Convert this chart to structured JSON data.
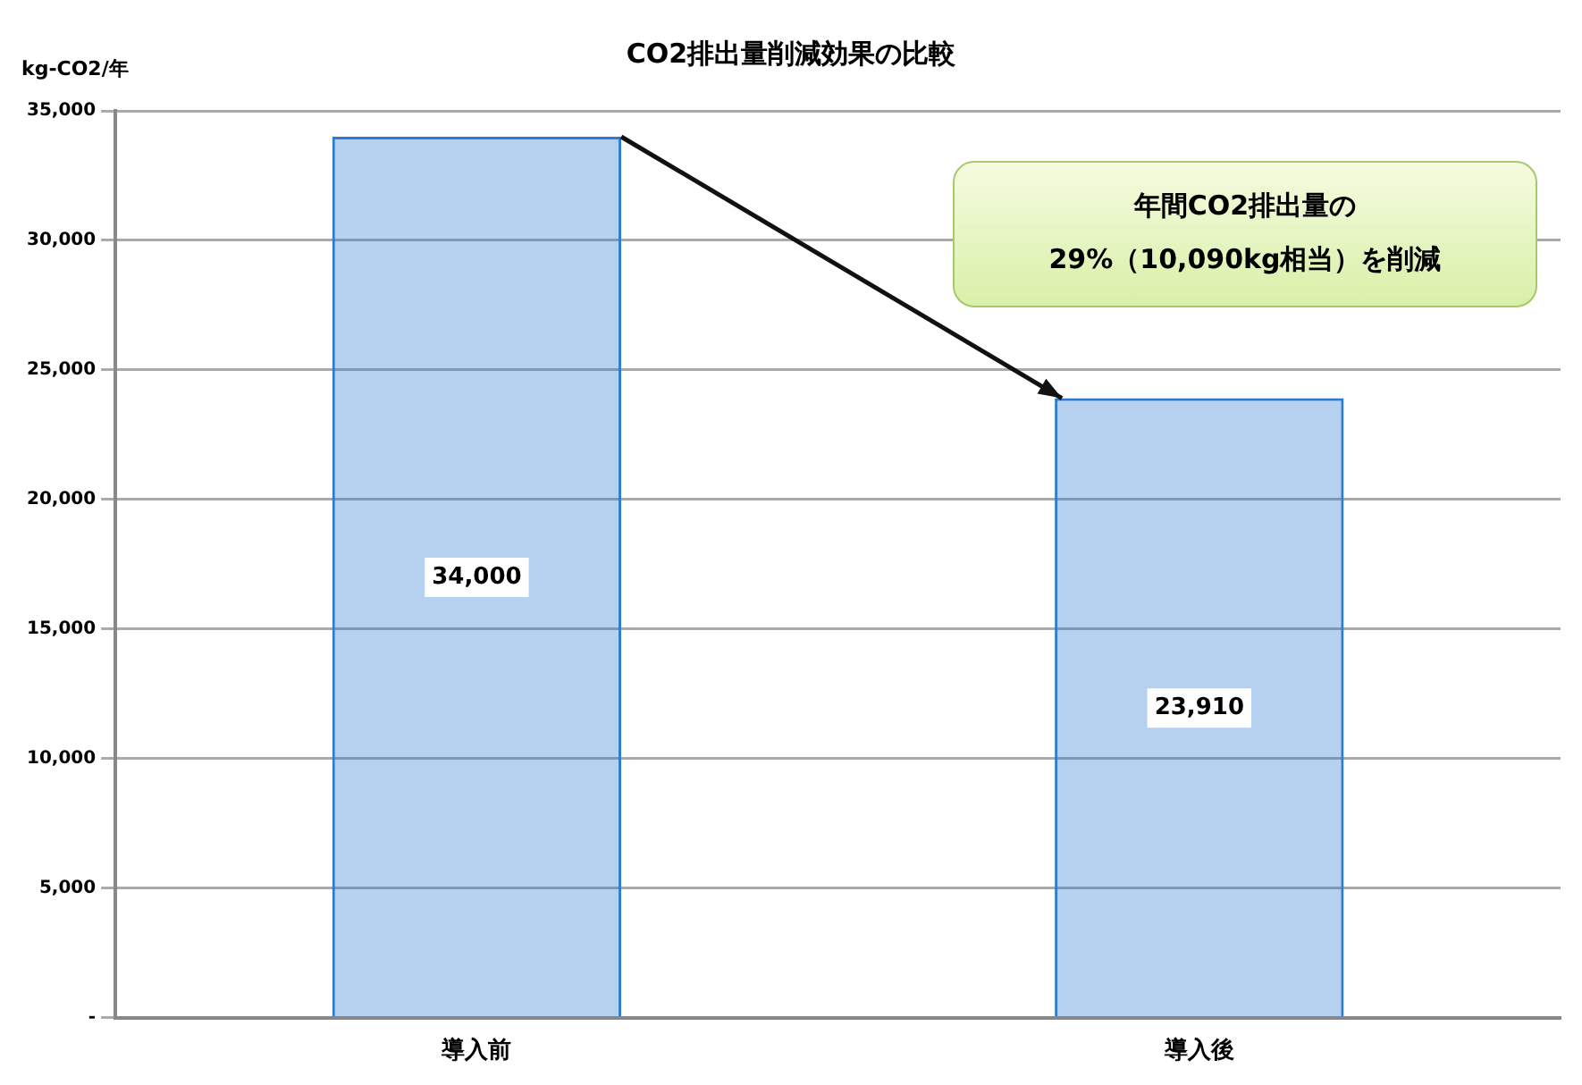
{
  "chart_data": {
    "type": "bar",
    "title": "CO2排出量削減効果の比較",
    "ylabel": "kg-CO2/年",
    "categories": [
      "導入前",
      "導入後"
    ],
    "values": [
      34000,
      23910
    ],
    "color": "#2e7bd0",
    "ylim": [
      0,
      35000
    ],
    "yticks": [
      {
        "value": 0,
        "label": "-"
      },
      {
        "value": 5000,
        "label": "5,000"
      },
      {
        "value": 10000,
        "label": "10,000"
      },
      {
        "value": 15000,
        "label": "15,000"
      },
      {
        "value": 20000,
        "label": "20,000"
      },
      {
        "value": 25000,
        "label": "25,000"
      },
      {
        "value": 30000,
        "label": "30,000"
      },
      {
        "value": 35000,
        "label": "35,000"
      }
    ],
    "grid": "y",
    "value_labels": [
      "34,000",
      "23,910"
    ],
    "annotations": [
      "年間CO2排出量の\n29%（10,090kg相当）を削減"
    ]
  }
}
